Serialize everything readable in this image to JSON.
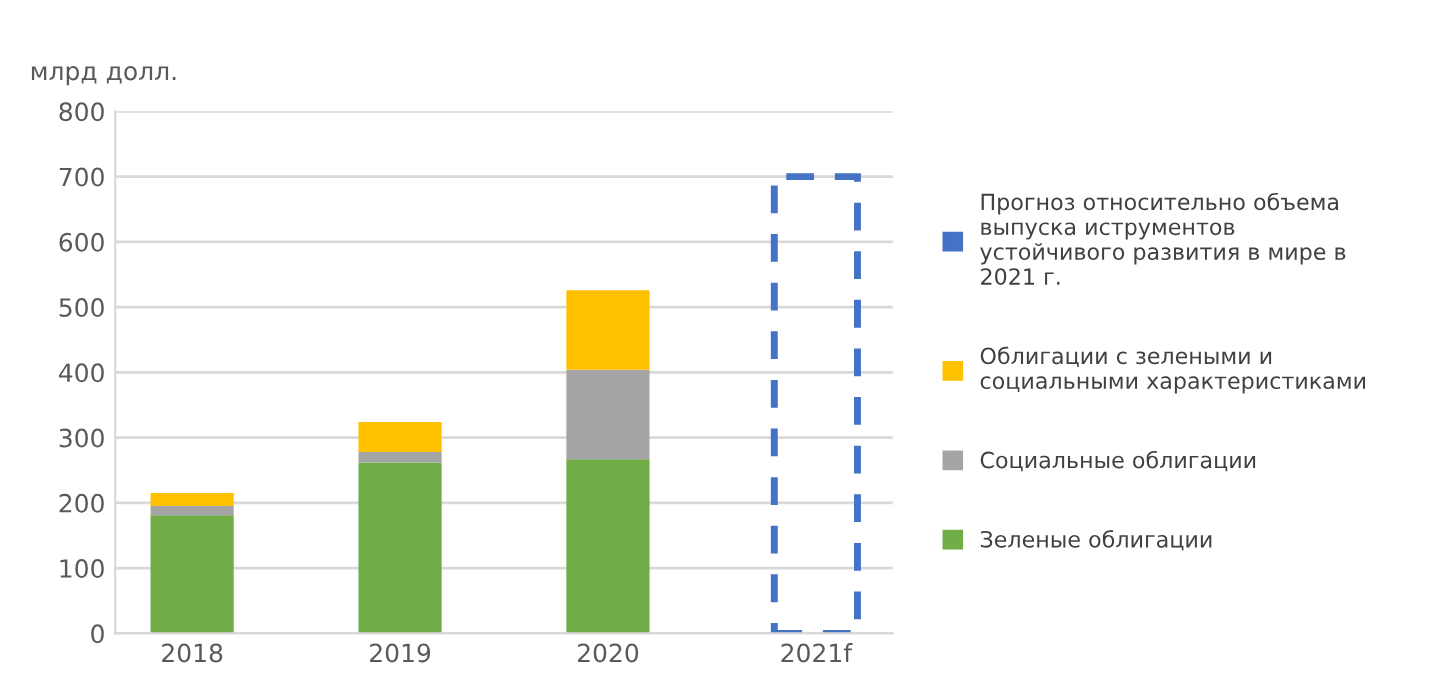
{
  "chart_data": {
    "type": "bar",
    "stacked": true,
    "ylabel": "млрд долл.",
    "categories": [
      "2018",
      "2019",
      "2020",
      "2021f"
    ],
    "series": [
      {
        "name": "Зеленые облигации",
        "color": "#70ad47",
        "values": [
          181,
          262,
          267,
          null
        ]
      },
      {
        "name": "Социальные облигации",
        "color": "#a5a5a5",
        "values": [
          14,
          16,
          137,
          null
        ]
      },
      {
        "name": "Облигации с зелеными и социальными характеристиками",
        "color": "#ffc000",
        "values": [
          20,
          46,
          122,
          null
        ]
      },
      {
        "name": "Прогноз относительно объема выпуска иструментов устойчивого развития в мире в 2021 г.",
        "color": "#4472c4",
        "values": [
          null,
          null,
          null,
          700
        ],
        "line_style": "dashed"
      }
    ],
    "ylim": [
      0,
      800
    ],
    "yticks": [
      0,
      100,
      200,
      300,
      400,
      500,
      600,
      700,
      800
    ],
    "grid": "y",
    "legend": "right"
  }
}
